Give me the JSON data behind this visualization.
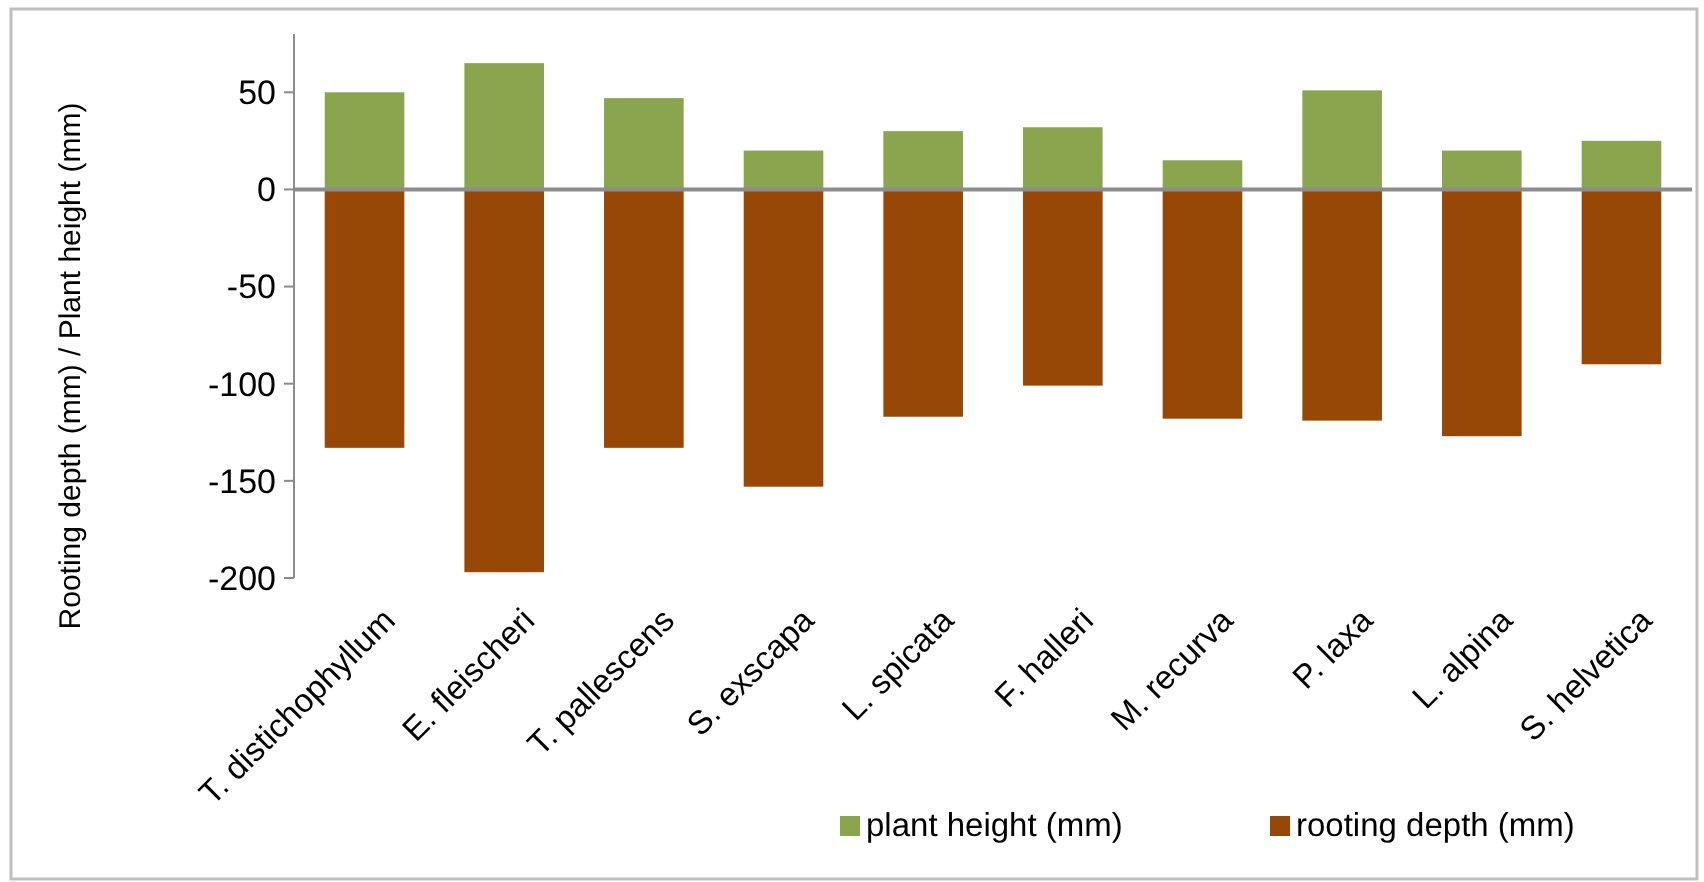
{
  "chart_data": {
    "type": "bar",
    "stacked": true,
    "ylabel": "Rooting depth (mm) / Plant height (mm)",
    "categories": [
      "T. distichophyllum",
      "E. fleischeri",
      "T. pallescens",
      "S. exscapa",
      "L. spicata",
      "F. halleri",
      "M. recurva",
      "P. laxa",
      "L. alpina",
      "S. helvetica"
    ],
    "series": [
      {
        "name": "plant height (mm)",
        "color": "#8aa54e",
        "values": [
          50,
          65,
          47,
          20,
          30,
          32,
          15,
          51,
          20,
          25
        ]
      },
      {
        "name": "rooting depth (mm)",
        "color": "#974807",
        "values": [
          -133,
          -197,
          -133,
          -153,
          -117,
          -101,
          -118,
          -119,
          -127,
          -90
        ]
      }
    ],
    "ylim": [
      -200,
      80
    ],
    "yticks": [
      -200,
      -150,
      -100,
      -50,
      0,
      50
    ],
    "legend": "bottom right"
  }
}
